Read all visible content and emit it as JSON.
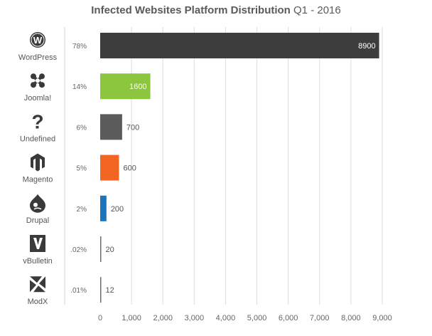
{
  "chart_data": {
    "type": "bar",
    "orientation": "horizontal",
    "title": "Infected Websites Platform Distribution",
    "subtitle": "Q1 - 2016",
    "categories": [
      "WordPress",
      "Joomla!",
      "Undefined",
      "Magento",
      "Drupal",
      "vBulletin",
      "ModX"
    ],
    "values": [
      8900,
      1600,
      700,
      600,
      200,
      20,
      12
    ],
    "value_labels": [
      "8900",
      "1600",
      "700",
      "600",
      "200",
      "20",
      "12"
    ],
    "percent_labels": [
      "78%",
      "14%",
      "6%",
      "5%",
      "2%",
      ".02%",
      ".01%"
    ],
    "colors": [
      "#3d3d3d",
      "#8cc63f",
      "#5b5b5b",
      "#f26522",
      "#1c75bc",
      "#6d6d6d",
      "#6d6d6d"
    ],
    "icons": [
      "wordpress-icon",
      "joomla-icon",
      "question-mark-icon",
      "magento-icon",
      "drupal-icon",
      "vbulletin-icon",
      "modx-icon"
    ],
    "xlim": [
      0,
      9000
    ],
    "xticks": [
      0,
      1000,
      2000,
      3000,
      4000,
      5000,
      6000,
      7000,
      8000,
      9000
    ],
    "xtick_labels": [
      "0",
      "1,000",
      "2,000",
      "3,000",
      "4,000",
      "5,000",
      "6,000",
      "7,000",
      "8,000",
      "9,000"
    ],
    "grid": true,
    "xlabel": "",
    "ylabel": ""
  }
}
